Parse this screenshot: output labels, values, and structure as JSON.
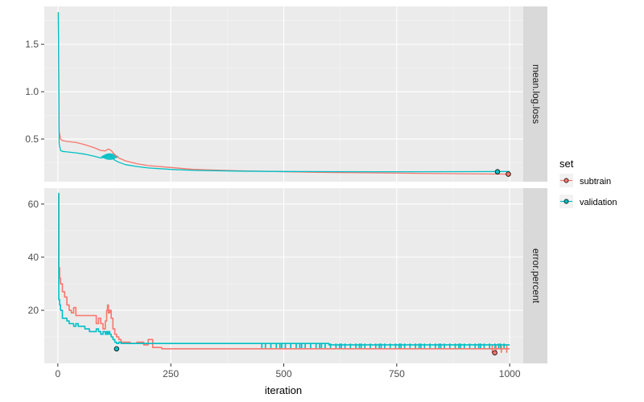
{
  "chart_data": {
    "type": "line",
    "xlabel": "iteration",
    "x_ticks": [
      0,
      250,
      500,
      750,
      1000
    ],
    "x_range": [
      -30,
      1030
    ],
    "legend": {
      "title": "set",
      "position": "right",
      "items": [
        {
          "label": "subtrain",
          "color": "#F8766D"
        },
        {
          "label": "validation",
          "color": "#00BFC4"
        }
      ]
    },
    "facets": [
      {
        "strip_label": "mean.log.loss",
        "y_range": [
          0.05,
          1.9
        ],
        "y_ticks": [
          0.5,
          1.0,
          1.5
        ],
        "y_tick_labels": [
          "0.5",
          "1.0",
          "1.5"
        ],
        "series": [
          {
            "name": "subtrain",
            "color": "#F8766D",
            "x": [
              1,
              3,
              6,
              10,
              20,
              40,
              60,
              80,
              95,
              105,
              112,
              118,
              125,
              135,
              150,
              175,
              200,
              250,
              300,
              400,
              500,
              600,
              700,
              800,
              900,
              1000
            ],
            "y": [
              1.84,
              0.58,
              0.5,
              0.485,
              0.475,
              0.465,
              0.44,
              0.41,
              0.38,
              0.375,
              0.395,
              0.38,
              0.34,
              0.3,
              0.27,
              0.24,
              0.22,
              0.2,
              0.18,
              0.165,
              0.155,
              0.148,
              0.143,
              0.138,
              0.134,
              0.13
            ]
          },
          {
            "name": "validation",
            "color": "#00BFC4",
            "x": [
              1,
              3,
              6,
              10,
              20,
              40,
              60,
              80,
              95,
              105,
              112,
              118,
              125,
              135,
              150,
              175,
              200,
              250,
              300,
              400,
              500,
              600,
              700,
              800,
              900,
              1000
            ],
            "y": [
              1.84,
              0.45,
              0.38,
              0.37,
              0.365,
              0.355,
              0.34,
              0.32,
              0.3,
              0.31,
              0.34,
              0.32,
              0.28,
              0.255,
              0.23,
              0.21,
              0.195,
              0.18,
              0.17,
              0.162,
              0.158,
              0.156,
              0.155,
              0.155,
              0.156,
              0.158
            ]
          }
        ],
        "band": {
          "series": "validation",
          "x_from": 95,
          "x_to": 135,
          "y_low": 0.28,
          "y_high": 0.35
        },
        "markers": [
          {
            "series": "subtrain",
            "x": 997,
            "y": 0.13
          },
          {
            "series": "validation",
            "x": 973,
            "y": 0.155
          }
        ]
      },
      {
        "strip_label": "error.percent",
        "y_range": [
          0,
          66
        ],
        "y_ticks": [
          20,
          40,
          60
        ],
        "y_tick_labels": [
          "20",
          "40",
          "60"
        ],
        "series": [
          {
            "name": "subtrain",
            "color": "#F8766D",
            "x": [
              1,
              2,
              4,
              6,
              10,
              15,
              20,
              25,
              30,
              35,
              40,
              45,
              50,
              60,
              70,
              80,
              85,
              90,
              95,
              100,
              105,
              108,
              110,
              112,
              115,
              118,
              122,
              126,
              130,
              135,
              140,
              150,
              160,
              175,
              190,
              200,
              210,
              230,
              250,
              300,
              400,
              500,
              600,
              700,
              800,
              900,
              1000
            ],
            "y": [
              64,
              36,
              32,
              30,
              27,
              25,
              22,
              20,
              19,
              21,
              18,
              18,
              18,
              18,
              18,
              18,
              15,
              17,
              15,
              13,
              16,
              20,
              22,
              19,
              20,
              17,
              13,
              11,
              10,
              9,
              8,
              8,
              7.5,
              8,
              7,
              9,
              6,
              5.5,
              5.5,
              5.5,
              5.5,
              5.5,
              5.5,
              5.5,
              5.5,
              5.5,
              5.5
            ]
          },
          {
            "name": "validation",
            "color": "#00BFC4",
            "x": [
              1,
              2,
              4,
              6,
              10,
              15,
              20,
              25,
              30,
              35,
              40,
              45,
              50,
              60,
              70,
              80,
              85,
              90,
              95,
              100,
              105,
              108,
              110,
              112,
              115,
              118,
              122,
              126,
              130,
              135,
              140,
              150,
              160,
              175,
              190,
              200,
              210,
              230,
              250,
              300,
              400,
              500,
              600,
              700,
              800,
              900,
              1000
            ],
            "y": [
              64,
              24,
              22,
              20,
              17,
              17,
              16,
              15,
              15,
              14,
              15,
              14,
              14,
              13,
              12,
              12,
              13,
              12,
              11,
              12,
              11,
              12,
              11,
              12,
              11,
              10,
              9,
              8,
              7.5,
              8,
              7.5,
              7.5,
              7.5,
              7.5,
              7.5,
              7.5,
              7.5,
              7.5,
              7.5,
              7.5,
              7.5,
              7.5,
              7,
              7,
              7,
              7,
              7
            ]
          }
        ],
        "oscillation": [
          {
            "series": "validation",
            "x_from": 450,
            "x_to": 995,
            "y_low": 5.5,
            "y_high": 7.5
          },
          {
            "series": "subtrain",
            "x_from": 960,
            "x_to": 1000,
            "y_low": 4,
            "y_high": 7
          }
        ],
        "markers": [
          {
            "series": "validation",
            "x": 130,
            "y": 5.5
          },
          {
            "series": "subtrain",
            "x": 967,
            "y": 4
          }
        ]
      }
    ]
  }
}
